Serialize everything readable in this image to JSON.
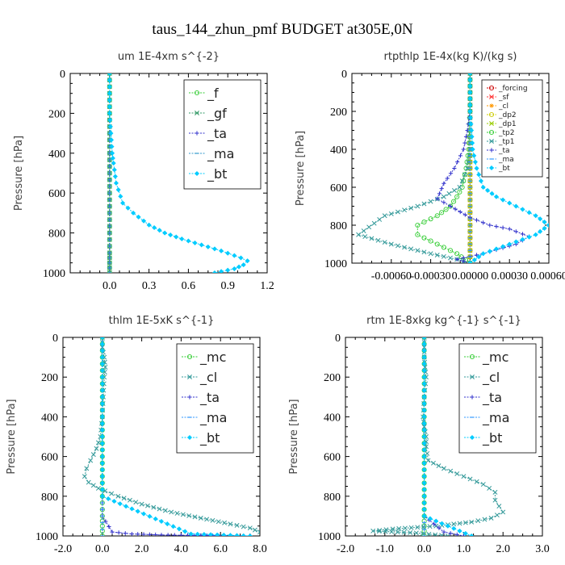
{
  "figure": {
    "title": "taus_144_zhun_pmf  BUDGET at305E,0N"
  },
  "chart_data": [
    {
      "type": "line",
      "title": "um  1E-4xm s^{-2}",
      "ylabel": "Pressure [hPa]",
      "xlabel": "",
      "xlim": [
        -0.3,
        1.2
      ],
      "ylim": [
        1000,
        0
      ],
      "xticks": [
        "0.0",
        "0.3",
        "0.6",
        "0.9",
        "1.2"
      ],
      "yticks": [
        "0",
        "200",
        "400",
        "600",
        "800",
        "1000"
      ],
      "y_reversed": true,
      "legend_position": "top-right",
      "series": [
        {
          "name": "_f",
          "color": "#33cc33",
          "marker": "circle",
          "x": [
            0,
            0,
            0,
            0,
            0,
            0,
            0,
            0,
            0,
            0,
            0,
            0
          ],
          "y": [
            0,
            100,
            200,
            300,
            400,
            500,
            600,
            700,
            800,
            900,
            950,
            1000
          ]
        },
        {
          "name": "_gf",
          "color": "#339966",
          "marker": "cross",
          "x": [
            0,
            0,
            0,
            0,
            0,
            0,
            0,
            0,
            0,
            0,
            0,
            0
          ],
          "y": [
            0,
            100,
            200,
            300,
            400,
            500,
            600,
            700,
            800,
            900,
            950,
            1000
          ]
        },
        {
          "name": "_ta",
          "color": "#3333cc",
          "marker": "plus",
          "x": [
            0,
            0,
            0,
            0,
            0,
            0,
            0,
            0,
            0,
            0,
            0,
            0
          ],
          "y": [
            0,
            100,
            200,
            300,
            400,
            500,
            600,
            700,
            800,
            900,
            950,
            1000
          ]
        },
        {
          "name": "_ma",
          "color": "#3399cc",
          "marker": "dash",
          "x": [
            0,
            0,
            0,
            0,
            0,
            0,
            0,
            0,
            0,
            0,
            0,
            0
          ],
          "y": [
            0,
            100,
            200,
            300,
            400,
            500,
            600,
            700,
            800,
            900,
            950,
            1000
          ]
        },
        {
          "name": "_bt",
          "color": "#00ccff",
          "marker": "diamond",
          "x": [
            0,
            0,
            0,
            0.01,
            0.02,
            0.03,
            0.05,
            0.1,
            0.18,
            0.3,
            0.42,
            0.55,
            0.7,
            0.85,
            1.0,
            1.05,
            1.02,
            0.95,
            0.8
          ],
          "y": [
            0,
            100,
            200,
            300,
            400,
            450,
            550,
            650,
            700,
            760,
            800,
            830,
            860,
            890,
            925,
            940,
            960,
            980,
            1000
          ]
        }
      ]
    },
    {
      "type": "line",
      "title": "rtpthlp  1E-4x(kg K)/(kg s)",
      "ylabel": "Pressure [hPa]",
      "xlabel": "",
      "xlim": [
        -0.0009,
        0.0006
      ],
      "ylim": [
        1000,
        0
      ],
      "xticks": [
        "-0.00060",
        "-0.00030",
        "0.00000",
        "0.00030",
        "0.00060"
      ],
      "yticks": [
        "0",
        "200",
        "400",
        "600",
        "800",
        "1000"
      ],
      "y_reversed": true,
      "legend_position": "top-right",
      "series": [
        {
          "name": "_forcing",
          "color": "#cc0000",
          "marker": "circle",
          "x": [
            0,
            0,
            0,
            0,
            0,
            0,
            0,
            0,
            0,
            0,
            0
          ],
          "y": [
            0,
            100,
            200,
            300,
            400,
            500,
            600,
            700,
            800,
            900,
            1000
          ]
        },
        {
          "name": "_sf",
          "color": "#ff3333",
          "marker": "cross",
          "x": [
            0,
            0,
            0,
            0,
            0,
            0,
            0,
            0,
            0,
            0,
            0
          ],
          "y": [
            0,
            100,
            200,
            300,
            400,
            500,
            600,
            700,
            800,
            900,
            1000
          ]
        },
        {
          "name": "_cl",
          "color": "#ff9900",
          "marker": "star",
          "x": [
            0,
            0,
            0,
            0,
            0,
            0,
            0,
            0,
            0,
            0,
            0
          ],
          "y": [
            0,
            100,
            200,
            300,
            400,
            500,
            600,
            700,
            800,
            900,
            1000
          ]
        },
        {
          "name": "_dp2",
          "color": "#cccc00",
          "marker": "circle",
          "x": [
            0,
            0,
            0,
            0,
            0,
            0,
            0,
            0,
            0,
            0,
            0
          ],
          "y": [
            0,
            100,
            200,
            300,
            400,
            500,
            600,
            700,
            800,
            900,
            1000
          ]
        },
        {
          "name": "_dp1",
          "color": "#99cc00",
          "marker": "cross",
          "x": [
            0,
            0,
            0,
            0,
            0,
            0,
            0,
            0,
            0,
            0,
            0
          ],
          "y": [
            0,
            100,
            200,
            300,
            400,
            500,
            600,
            700,
            800,
            900,
            1000
          ]
        },
        {
          "name": "_tp2",
          "color": "#33cc33",
          "marker": "circle",
          "x": [
            0,
            0,
            -1e-05,
            -3e-05,
            -6e-05,
            -0.0001,
            -0.00015,
            -0.00025,
            -0.0004,
            -0.0004,
            -0.00025,
            -0.0001,
            0
          ],
          "y": [
            0,
            200,
            400,
            500,
            600,
            650,
            700,
            750,
            800,
            850,
            900,
            950,
            1000
          ]
        },
        {
          "name": "_tp1",
          "color": "#339999",
          "marker": "cross",
          "x": [
            0,
            0,
            0,
            -2e-05,
            -8e-05,
            -0.0002,
            -0.0004,
            -0.00065,
            -0.00085,
            -0.0006,
            -0.0003,
            -0.0001,
            0
          ],
          "y": [
            0,
            200,
            400,
            500,
            600,
            650,
            700,
            750,
            850,
            900,
            950,
            980,
            1000
          ]
        },
        {
          "name": "_ta",
          "color": "#3333cc",
          "marker": "plus",
          "x": [
            0,
            -2e-05,
            -5e-05,
            -0.00012,
            -0.0002,
            -0.00025,
            -0.00015,
            0,
            0.00015,
            0.0003,
            0.00045,
            0.00035,
            0.0001,
            -0.0001,
            0
          ],
          "y": [
            200,
            300,
            400,
            500,
            580,
            660,
            700,
            760,
            800,
            820,
            860,
            900,
            950,
            980,
            1000
          ]
        },
        {
          "name": "_ma",
          "color": "#3399ff",
          "marker": "dash",
          "x": [
            0,
            0,
            0,
            0,
            0,
            0,
            0,
            0,
            0,
            0,
            0
          ],
          "y": [
            0,
            100,
            200,
            300,
            400,
            500,
            600,
            700,
            800,
            900,
            1000
          ]
        },
        {
          "name": "_bt",
          "color": "#00ccff",
          "marker": "diamond",
          "x": [
            0,
            0,
            2e-05,
            5e-05,
            0.0001,
            0.0002,
            0.00035,
            0.0005,
            0.0006,
            0.0005,
            0.0003,
            0.0001,
            0
          ],
          "y": [
            0,
            200,
            400,
            500,
            600,
            650,
            700,
            750,
            800,
            850,
            900,
            950,
            1000
          ]
        }
      ]
    },
    {
      "type": "line",
      "title": "thlm  1E-5xK s^{-1}",
      "ylabel": "Pressure [hPa]",
      "xlabel": "",
      "xlim": [
        -2.0,
        8.0
      ],
      "ylim": [
        1000,
        0
      ],
      "xticks": [
        "-2.0",
        "0.0",
        "2.0",
        "4.0",
        "6.0",
        "8.0"
      ],
      "yticks": [
        "0",
        "200",
        "400",
        "600",
        "800",
        "1000"
      ],
      "y_reversed": true,
      "legend_position": "top-right",
      "series": [
        {
          "name": "_mc",
          "color": "#33cc33",
          "marker": "circle",
          "x": [
            0,
            0,
            0,
            0,
            0,
            0,
            0,
            0,
            0,
            0,
            0,
            0
          ],
          "y": [
            0,
            100,
            200,
            300,
            400,
            500,
            600,
            700,
            800,
            900,
            950,
            1000
          ]
        },
        {
          "name": "_cl",
          "color": "#339999",
          "marker": "cross",
          "x": [
            0,
            0,
            0.1,
            0.15,
            0.1,
            0.05,
            0,
            -0.1,
            -0.3,
            -0.6,
            -0.8,
            -0.9,
            -0.7,
            -0.2,
            0.8,
            2.0,
            3.5,
            5.0,
            6.5,
            7.5,
            8.0
          ],
          "y": [
            0,
            50,
            100,
            150,
            200,
            300,
            400,
            500,
            560,
            620,
            660,
            700,
            730,
            760,
            800,
            840,
            880,
            910,
            940,
            960,
            980
          ]
        },
        {
          "name": "_ta",
          "color": "#3333cc",
          "marker": "plus",
          "x": [
            0,
            0,
            0,
            0,
            0,
            0,
            0,
            0,
            0,
            0,
            0.5,
            1.5,
            3.0,
            5.0,
            6.5,
            7.5
          ],
          "y": [
            0,
            100,
            200,
            300,
            400,
            500,
            600,
            700,
            800,
            900,
            980,
            990,
            995,
            998,
            999,
            1000
          ]
        },
        {
          "name": "_ma",
          "color": "#3399ff",
          "marker": "dash",
          "x": [
            0,
            0,
            0,
            0,
            0,
            0,
            0,
            0,
            0,
            0,
            0
          ],
          "y": [
            0,
            100,
            200,
            300,
            400,
            500,
            600,
            700,
            800,
            900,
            1000
          ]
        },
        {
          "name": "_bt",
          "color": "#00ccff",
          "marker": "diamond",
          "x": [
            0,
            0,
            0,
            0,
            0,
            0,
            0,
            0,
            0,
            4.5,
            7.5
          ],
          "y": [
            0,
            100,
            200,
            300,
            400,
            500,
            600,
            700,
            800,
            990,
            1000
          ]
        }
      ]
    },
    {
      "type": "line",
      "title": "rtm  1E-8xkg kg^{-1} s^{-1}",
      "ylabel": "Pressure [hPa]",
      "xlabel": "",
      "xlim": [
        -2.0,
        3.0
      ],
      "ylim": [
        1000,
        0
      ],
      "xticks": [
        "-2.0",
        "-1.0",
        "0.0",
        "1.0",
        "2.0",
        "3.0"
      ],
      "yticks": [
        "0",
        "200",
        "400",
        "600",
        "800",
        "1000"
      ],
      "y_reversed": true,
      "legend_position": "top-right",
      "series": [
        {
          "name": "_mc",
          "color": "#33cc33",
          "marker": "circle",
          "x": [
            0,
            0,
            0,
            0,
            0,
            0,
            0,
            0,
            0,
            0,
            0,
            0
          ],
          "y": [
            0,
            100,
            200,
            300,
            400,
            500,
            600,
            700,
            800,
            900,
            950,
            1000
          ]
        },
        {
          "name": "_cl",
          "color": "#339999",
          "marker": "cross",
          "x": [
            0,
            0,
            0,
            0.02,
            0.05,
            0.0,
            -0.03,
            0.0,
            0.05,
            0.05,
            0.1,
            0.5,
            1.0,
            1.5,
            1.8,
            1.8,
            1.9,
            2.0,
            1.7,
            1.2,
            0.3,
            -0.8,
            -1.3,
            -0.2,
            0.6
          ],
          "y": [
            0,
            50,
            100,
            150,
            200,
            300,
            400,
            450,
            500,
            550,
            620,
            660,
            700,
            740,
            780,
            820,
            850,
            880,
            910,
            930,
            950,
            965,
            975,
            985,
            1000
          ]
        },
        {
          "name": "_ta",
          "color": "#3333cc",
          "marker": "plus",
          "x": [
            0,
            0,
            0,
            0,
            0,
            0,
            0,
            0,
            0,
            0,
            0.5,
            1.0
          ],
          "y": [
            0,
            100,
            200,
            300,
            400,
            500,
            600,
            700,
            800,
            900,
            980,
            1000
          ]
        },
        {
          "name": "_ma",
          "color": "#3399ff",
          "marker": "dash",
          "x": [
            0,
            0,
            0,
            0,
            0,
            0,
            0,
            0,
            0,
            0,
            0
          ],
          "y": [
            0,
            100,
            200,
            300,
            400,
            500,
            600,
            700,
            800,
            900,
            1000
          ]
        },
        {
          "name": "_bt",
          "color": "#00ccff",
          "marker": "diamond",
          "x": [
            0,
            0,
            0,
            0,
            0,
            0,
            0,
            0,
            0,
            0,
            1.2
          ],
          "y": [
            0,
            100,
            200,
            300,
            400,
            500,
            600,
            700,
            800,
            900,
            1000
          ]
        }
      ]
    }
  ]
}
